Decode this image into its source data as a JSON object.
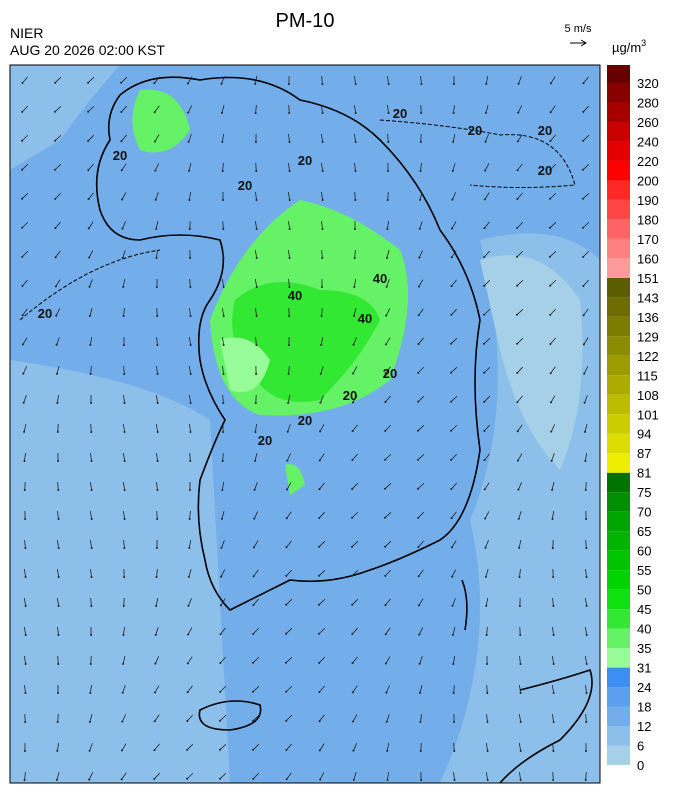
{
  "header": {
    "title": "PM-10",
    "agency": "NIER",
    "datetime": "AUG 20 2026 02:00 KST",
    "wind_scale": "5 m/s",
    "unit": "µg/m",
    "unit_sup": "3"
  },
  "colorbar": {
    "levels": [
      0,
      6,
      12,
      18,
      24,
      31,
      35,
      40,
      45,
      50,
      55,
      60,
      65,
      70,
      75,
      81,
      87,
      94,
      101,
      108,
      115,
      122,
      129,
      136,
      143,
      151,
      160,
      170,
      180,
      190,
      200,
      220,
      240,
      260,
      280,
      320
    ],
    "colors": [
      "#a6cfe8",
      "#8cbfea",
      "#73aeea",
      "#5d9fee",
      "#3c8ff2",
      "#98fc98",
      "#66f266",
      "#33e833",
      "#0fe00f",
      "#00d400",
      "#00c400",
      "#00b400",
      "#00a400",
      "#008f00",
      "#007400",
      "#eeee00",
      "#dcdc00",
      "#cccc00",
      "#bcbc00",
      "#acac00",
      "#9c9c00",
      "#8c8c00",
      "#7c7c00",
      "#6c6c00",
      "#5c5c00",
      "#ff9a9a",
      "#ff8080",
      "#ff6464",
      "#ff4646",
      "#ff2828",
      "#ff0000",
      "#e40000",
      "#c80000",
      "#a80000",
      "#880000",
      "#660000"
    ]
  },
  "contour_labels": [
    "20",
    "20",
    "20",
    "20",
    "20",
    "20",
    "20",
    "20",
    "40",
    "40",
    "40",
    "20",
    "20",
    "20",
    "20"
  ]
}
